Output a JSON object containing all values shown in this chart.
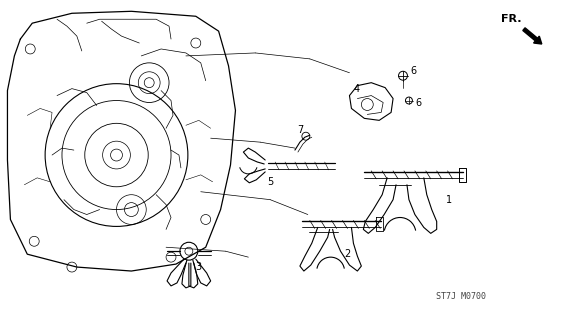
{
  "background_color": "#ffffff",
  "line_color": "#000000",
  "catalog_text": "ST7J M0700",
  "fig_width": 5.75,
  "fig_height": 3.2,
  "dpi": 100
}
